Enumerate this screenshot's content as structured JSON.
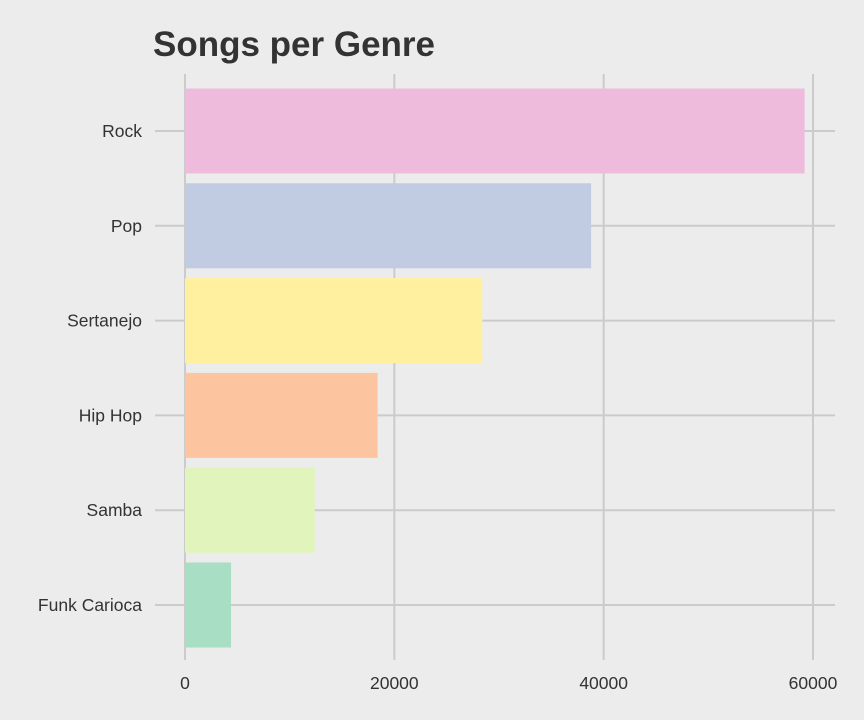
{
  "chart_data": {
    "type": "bar",
    "orientation": "horizontal",
    "title": "Songs per Genre",
    "xlabel": "",
    "ylabel": "",
    "categories": [
      "Rock",
      "Pop",
      "Sertanejo",
      "Hip Hop",
      "Samba",
      "Funk Carioca"
    ],
    "values": [
      59200,
      38800,
      28400,
      18400,
      12400,
      4400
    ],
    "colors": [
      "#efbbdd",
      "#c1cbe2",
      "#fff0a0",
      "#fdc59f",
      "#e0f4bc",
      "#a7dec4"
    ],
    "xlim": [
      0,
      62000
    ],
    "xticks": [
      0,
      20000,
      40000,
      60000
    ],
    "xtick_labels": [
      "0",
      "20000",
      "40000",
      "60000"
    ],
    "grid": true,
    "legend": "none"
  },
  "style": {
    "background": "#ececec",
    "grid_color": "#cbcbcb",
    "text_color": "#333333"
  }
}
